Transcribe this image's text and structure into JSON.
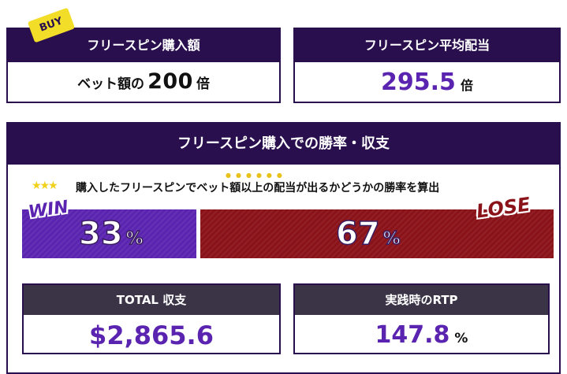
{
  "badge": {
    "label": "BUY"
  },
  "buy_box": {
    "title": "フリースピン購入額",
    "prefix": "ベット額の",
    "value": "200",
    "unit": "倍"
  },
  "avg_box": {
    "title": "フリースピン平均配当",
    "value": "295.5",
    "unit": "倍"
  },
  "main": {
    "title": "フリースピン購入での勝率・収支",
    "description": "購入したフリースピンでベット額以上の配当が出るかどうかの勝率を算出",
    "win": {
      "label": "WIN",
      "value": "33",
      "unit": "%",
      "fraction": 0.33
    },
    "lose": {
      "label": "LOSE",
      "value": "67",
      "unit": "%",
      "fraction": 0.67
    }
  },
  "total_box": {
    "title": "TOTAL 収支",
    "value": "$2,865.6"
  },
  "rtp_box": {
    "title": "実践時のRTP",
    "value": "147.8",
    "unit": "%"
  },
  "colors": {
    "header": "#2a0f4e",
    "win": "#5a24b0",
    "lose": "#8a1219",
    "badge": "#f2de28",
    "subheader": "#3b3447"
  }
}
